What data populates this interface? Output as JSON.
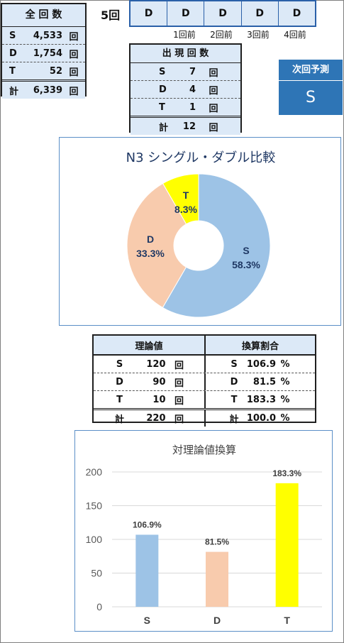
{
  "totals": {
    "title": "全 回 数",
    "rows": [
      {
        "type": "S",
        "count": "4,533",
        "unit": "回"
      },
      {
        "type": "D",
        "count": "1,754",
        "unit": "回"
      },
      {
        "type": "T",
        "count": "52",
        "unit": "回"
      }
    ],
    "total": {
      "type": "計",
      "count": "6,339",
      "unit": "回"
    }
  },
  "recent": {
    "label": "5回",
    "values": [
      "D",
      "D",
      "D",
      "D",
      "D"
    ],
    "labels": [
      "1回前",
      "2回前",
      "3回前",
      "4回前"
    ]
  },
  "appearance": {
    "title": "出 現 回 数",
    "rows": [
      {
        "type": "S",
        "count": "7",
        "unit": "回"
      },
      {
        "type": "D",
        "count": "4",
        "unit": "回"
      },
      {
        "type": "T",
        "count": "1",
        "unit": "回"
      }
    ],
    "total": {
      "type": "計",
      "count": "12",
      "unit": "回"
    }
  },
  "prediction": {
    "title": "次回予測",
    "value": "S"
  },
  "pie_chart": {
    "title": "N3 シングル・ダブル比較",
    "slices": [
      {
        "name": "S",
        "value": 58.3,
        "label": "58.3%",
        "color": "#9dc3e6"
      },
      {
        "name": "D",
        "value": 33.3,
        "label": "33.3%",
        "color": "#f8cbad"
      },
      {
        "name": "T",
        "value": 8.3,
        "label": "8.3%",
        "color": "#ffff00"
      }
    ]
  },
  "theory": {
    "header_left": "理論値",
    "header_right": "換算割合",
    "rows": [
      {
        "type": "S",
        "value": "120",
        "unit": "回",
        "ratio": "106.9",
        "pct": "%"
      },
      {
        "type": "D",
        "value": "90",
        "unit": "回",
        "ratio": "81.5",
        "pct": "%"
      },
      {
        "type": "T",
        "value": "10",
        "unit": "回",
        "ratio": "183.3",
        "pct": "%"
      }
    ],
    "total": {
      "type": "計",
      "value": "220",
      "unit": "回",
      "ratio": "100.0",
      "pct": "%"
    }
  },
  "chart_data": {
    "type": "bar",
    "title": "対理論値換算",
    "categories": [
      "S",
      "D",
      "T"
    ],
    "values": [
      106.9,
      81.5,
      183.3
    ],
    "data_labels": [
      "106.9%",
      "81.5%",
      "183.3%"
    ],
    "colors": [
      "#9dc3e6",
      "#f8cbad",
      "#ffff00"
    ],
    "yticks": [
      "0",
      "50",
      "100",
      "150",
      "200"
    ],
    "ylim": [
      0,
      200
    ],
    "grid": true
  }
}
